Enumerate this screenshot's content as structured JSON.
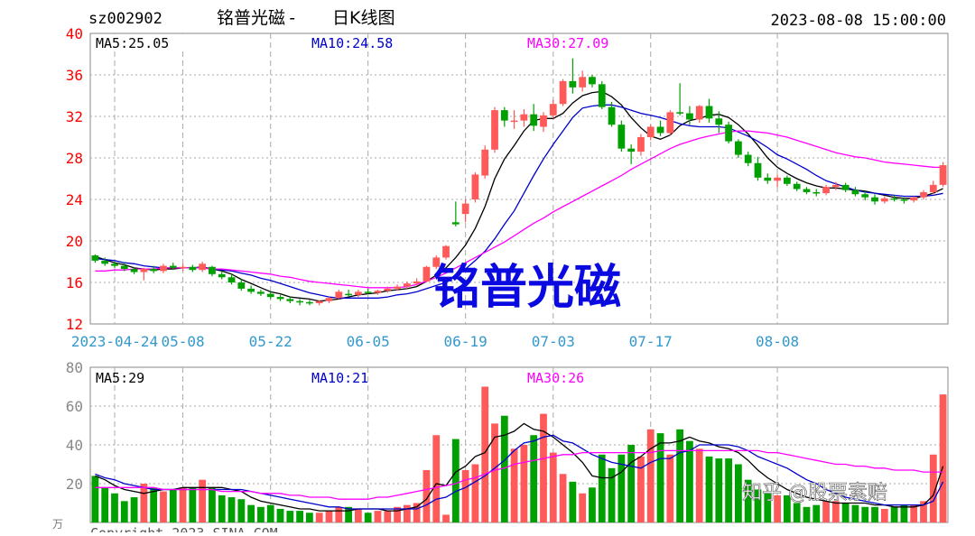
{
  "header": {
    "code": "sz002902",
    "name": "铭普光磁",
    "separator": "-",
    "chart_kind": "日K线图",
    "datetime": "2023-08-08 15:00:00"
  },
  "watermark": {
    "big": "铭普光磁",
    "source": "知乎 @股票素赔"
  },
  "footer": {
    "copyright": "Copyright 2023 SINA.COM",
    "unit": "万"
  },
  "colors": {
    "up": "#ff5a5a",
    "down": "#00a000",
    "ma5": "#000000",
    "ma10": "#0000cc",
    "ma30": "#ff00ff",
    "axis_price": "#ff0000",
    "axis_date": "#3399cc",
    "watermark": "#0a0ae0"
  },
  "chart_data": [
    {
      "type": "candlestick",
      "name": "price",
      "yticks": [
        12,
        16,
        20,
        24,
        28,
        32,
        36,
        40
      ],
      "ylim": [
        12,
        40
      ],
      "grid": true,
      "legend": [
        {
          "label": "MA5:25.05"
        },
        {
          "label": "MA10:24.58"
        },
        {
          "label": "MA30:27.09"
        }
      ],
      "xticks": [
        {
          "label": "2023-04-24",
          "index": 2
        },
        {
          "label": "05-08",
          "index": 9
        },
        {
          "label": "05-22",
          "index": 18
        },
        {
          "label": "06-05",
          "index": 28
        },
        {
          "label": "06-19",
          "index": 38
        },
        {
          "label": "07-03",
          "index": 47
        },
        {
          "label": "07-17",
          "index": 57
        },
        {
          "label": "08-08",
          "index": 70
        }
      ],
      "ohlc": [
        [
          18.6,
          18.7,
          17.9,
          18.1
        ],
        [
          18.1,
          18.4,
          17.6,
          17.8
        ],
        [
          17.8,
          18.0,
          17.4,
          17.6
        ],
        [
          17.6,
          17.9,
          17.1,
          17.3
        ],
        [
          17.3,
          17.5,
          16.8,
          17.0
        ],
        [
          17.0,
          17.4,
          16.2,
          17.3
        ],
        [
          17.3,
          17.6,
          16.9,
          17.1
        ],
        [
          17.1,
          17.8,
          16.9,
          17.6
        ],
        [
          17.6,
          17.9,
          17.2,
          17.4
        ],
        [
          17.4,
          17.8,
          17.1,
          17.5
        ],
        [
          17.5,
          17.7,
          17.0,
          17.2
        ],
        [
          17.2,
          18.0,
          17.0,
          17.8
        ],
        [
          17.5,
          17.6,
          16.6,
          16.8
        ],
        [
          16.8,
          17.1,
          16.3,
          16.5
        ],
        [
          16.5,
          16.8,
          15.8,
          16.0
        ],
        [
          16.0,
          16.3,
          15.2,
          15.4
        ],
        [
          15.4,
          15.7,
          14.9,
          15.1
        ],
        [
          15.1,
          15.3,
          14.7,
          14.9
        ],
        [
          14.9,
          15.1,
          14.4,
          14.6
        ],
        [
          14.6,
          14.8,
          14.2,
          14.4
        ],
        [
          14.4,
          14.6,
          14.0,
          14.2
        ],
        [
          14.2,
          14.4,
          13.8,
          14.1
        ],
        [
          14.1,
          14.3,
          13.8,
          14.0
        ],
        [
          14.0,
          14.3,
          13.8,
          14.2
        ],
        [
          14.2,
          14.6,
          14.0,
          14.5
        ],
        [
          14.5,
          15.3,
          14.4,
          15.1
        ],
        [
          14.9,
          15.3,
          14.6,
          14.8
        ],
        [
          14.8,
          15.3,
          14.6,
          15.1
        ],
        [
          15.1,
          15.4,
          14.9,
          15.0
        ],
        [
          15.0,
          15.3,
          14.8,
          15.2
        ],
        [
          15.2,
          15.6,
          15.0,
          15.4
        ],
        [
          15.4,
          15.8,
          15.2,
          15.6
        ],
        [
          15.6,
          16.1,
          15.4,
          15.9
        ],
        [
          15.9,
          16.4,
          15.7,
          16.1
        ],
        [
          16.1,
          17.6,
          16.0,
          17.5
        ],
        [
          17.5,
          18.6,
          17.3,
          18.4
        ],
        [
          18.4,
          19.6,
          18.2,
          19.5
        ],
        [
          21.8,
          23.8,
          21.4,
          21.6
        ],
        [
          22.6,
          24.0,
          21.8,
          23.6
        ],
        [
          24.0,
          26.6,
          23.7,
          26.4
        ],
        [
          26.3,
          29.2,
          26.0,
          28.8
        ],
        [
          28.8,
          32.9,
          28.5,
          32.6
        ],
        [
          32.6,
          32.9,
          31.0,
          31.6
        ],
        [
          31.5,
          32.6,
          30.8,
          31.6
        ],
        [
          31.6,
          32.7,
          31.0,
          32.2
        ],
        [
          32.2,
          33.2,
          30.6,
          31.1
        ],
        [
          31.0,
          32.4,
          30.5,
          32.1
        ],
        [
          32.1,
          33.6,
          31.8,
          33.2
        ],
        [
          33.2,
          35.6,
          33.0,
          35.4
        ],
        [
          35.4,
          37.6,
          34.2,
          34.8
        ],
        [
          34.8,
          36.4,
          34.4,
          35.8
        ],
        [
          35.8,
          36.0,
          34.8,
          35.1
        ],
        [
          35.1,
          35.4,
          32.7,
          32.9
        ],
        [
          32.9,
          33.4,
          31.0,
          31.2
        ],
        [
          31.2,
          31.6,
          28.6,
          28.9
        ],
        [
          28.9,
          29.3,
          27.4,
          28.6
        ],
        [
          28.6,
          30.3,
          28.2,
          30.0
        ],
        [
          30.0,
          31.2,
          29.7,
          31.0
        ],
        [
          31.0,
          31.6,
          30.1,
          30.4
        ],
        [
          30.4,
          32.6,
          30.2,
          32.4
        ],
        [
          32.4,
          35.2,
          32.1,
          32.3
        ],
        [
          32.3,
          33.0,
          31.2,
          31.7
        ],
        [
          31.7,
          33.1,
          31.4,
          33.0
        ],
        [
          33.0,
          33.7,
          31.4,
          31.8
        ],
        [
          31.8,
          32.5,
          30.4,
          31.2
        ],
        [
          31.2,
          31.5,
          29.4,
          29.6
        ],
        [
          29.6,
          29.8,
          28.0,
          28.3
        ],
        [
          28.3,
          28.6,
          27.2,
          27.5
        ],
        [
          27.5,
          28.1,
          25.8,
          26.1
        ],
        [
          26.1,
          26.5,
          25.5,
          25.8
        ],
        [
          25.8,
          26.4,
          25.2,
          26.1
        ],
        [
          26.1,
          26.3,
          25.3,
          25.5
        ],
        [
          25.5,
          25.7,
          24.8,
          25.0
        ],
        [
          25.0,
          25.2,
          24.5,
          24.7
        ],
        [
          24.7,
          25.0,
          24.3,
          24.6
        ],
        [
          24.6,
          25.4,
          24.4,
          25.2
        ],
        [
          25.2,
          25.7,
          24.9,
          25.4
        ],
        [
          25.4,
          25.6,
          24.7,
          24.9
        ],
        [
          24.9,
          25.2,
          24.3,
          24.5
        ],
        [
          24.5,
          24.8,
          23.9,
          24.2
        ],
        [
          24.2,
          24.5,
          23.5,
          23.8
        ],
        [
          23.8,
          24.3,
          23.6,
          24.1
        ],
        [
          24.1,
          24.4,
          23.8,
          24.0
        ],
        [
          24.0,
          24.2,
          23.6,
          23.9
        ],
        [
          23.9,
          24.3,
          23.7,
          24.2
        ],
        [
          24.2,
          24.9,
          24.0,
          24.7
        ],
        [
          24.7,
          25.8,
          24.5,
          25.4
        ],
        [
          25.4,
          27.6,
          25.2,
          27.3
        ]
      ],
      "series": [
        {
          "name": "MA5",
          "values": [
            18.5,
            18.2,
            17.9,
            17.7,
            17.4,
            17.3,
            17.2,
            17.3,
            17.3,
            17.4,
            17.4,
            17.5,
            17.3,
            17.1,
            16.8,
            16.3,
            15.9,
            15.5,
            15.1,
            14.9,
            14.6,
            14.5,
            14.4,
            14.2,
            14.3,
            14.4,
            14.6,
            14.8,
            14.9,
            15.0,
            15.2,
            15.3,
            15.4,
            15.6,
            16.1,
            16.7,
            17.4,
            18.4,
            19.6,
            21.2,
            23.3,
            26.0,
            27.9,
            29.2,
            30.6,
            31.6,
            31.8,
            31.8,
            32.3,
            33.3,
            34.0,
            34.3,
            34.4,
            33.9,
            33.1,
            31.9,
            30.9,
            30.1,
            29.8,
            30.2,
            31.1,
            31.6,
            31.8,
            32.1,
            32.2,
            31.9,
            31.2,
            30.3,
            29.2,
            28.0,
            27.1,
            26.5,
            26.0,
            25.6,
            25.3,
            25.1,
            25.1,
            25.0,
            24.9,
            24.8,
            24.6,
            24.4,
            24.2,
            24.1,
            24.1,
            24.3,
            24.6,
            25.05
          ]
        },
        {
          "name": "MA10",
          "values": [
            18.3,
            18.2,
            18.1,
            17.9,
            17.8,
            17.6,
            17.5,
            17.4,
            17.4,
            17.4,
            17.4,
            17.4,
            17.3,
            17.2,
            17.1,
            16.9,
            16.7,
            16.4,
            16.2,
            15.9,
            15.6,
            15.3,
            15.0,
            14.8,
            14.6,
            14.5,
            14.5,
            14.5,
            14.5,
            14.5,
            14.6,
            14.8,
            14.9,
            15.1,
            15.4,
            15.7,
            16.0,
            16.6,
            17.3,
            18.1,
            19.0,
            20.2,
            21.6,
            22.9,
            24.6,
            26.3,
            27.9,
            29.3,
            30.6,
            31.9,
            32.8,
            33.0,
            33.1,
            33.1,
            32.9,
            32.6,
            32.3,
            32.1,
            31.9,
            31.6,
            31.3,
            31.1,
            31.0,
            31.0,
            31.0,
            30.9,
            30.5,
            30.1,
            29.6,
            29.0,
            28.3,
            27.9,
            27.4,
            26.9,
            26.3,
            25.8,
            25.5,
            25.2,
            24.9,
            24.7,
            24.6,
            24.5,
            24.4,
            24.3,
            24.3,
            24.3,
            24.4,
            24.58
          ]
        },
        {
          "name": "MA30",
          "values": [
            17.1,
            17.1,
            17.2,
            17.2,
            17.3,
            17.3,
            17.3,
            17.4,
            17.4,
            17.4,
            17.4,
            17.4,
            17.3,
            17.3,
            17.2,
            17.1,
            17.0,
            16.9,
            16.8,
            16.6,
            16.5,
            16.3,
            16.1,
            16.0,
            15.9,
            15.8,
            15.7,
            15.6,
            15.5,
            15.5,
            15.5,
            15.5,
            15.6,
            15.8,
            16.1,
            16.5,
            16.9,
            17.4,
            17.9,
            18.4,
            18.9,
            19.4,
            19.9,
            20.5,
            21.1,
            21.7,
            22.2,
            22.8,
            23.3,
            23.8,
            24.3,
            24.8,
            25.3,
            25.8,
            26.3,
            26.9,
            27.4,
            27.9,
            28.4,
            28.9,
            29.3,
            29.6,
            29.9,
            30.1,
            30.3,
            30.5,
            30.6,
            30.6,
            30.5,
            30.4,
            30.2,
            30.0,
            29.7,
            29.4,
            29.1,
            28.8,
            28.5,
            28.3,
            28.1,
            28.0,
            27.8,
            27.6,
            27.5,
            27.4,
            27.3,
            27.2,
            27.1,
            27.09
          ]
        }
      ]
    },
    {
      "type": "bar",
      "name": "volume",
      "unit": "万",
      "yticks": [
        20,
        40,
        60,
        80
      ],
      "ylim": [
        0,
        80
      ],
      "grid": true,
      "legend": [
        {
          "label": "MA5:29"
        },
        {
          "label": "MA10:21"
        },
        {
          "label": "MA30:26"
        }
      ],
      "values": [
        24,
        18,
        15,
        11,
        13,
        20,
        18,
        16,
        17,
        18,
        18,
        22,
        18,
        14,
        13,
        12,
        9,
        8,
        9,
        7,
        6,
        6,
        5,
        5,
        6,
        8,
        8,
        7,
        5,
        6,
        6,
        8,
        9,
        10,
        27,
        45,
        4,
        43,
        27,
        30,
        70,
        51,
        55,
        38,
        40,
        45,
        56,
        36,
        25,
        21,
        15,
        18,
        35,
        28,
        35,
        40,
        34,
        48,
        46,
        35,
        48,
        42,
        38,
        34,
        33,
        33,
        30,
        22,
        17,
        15,
        14,
        14,
        10,
        8,
        9,
        11,
        11,
        10,
        9,
        8,
        8,
        7,
        8,
        9,
        9,
        11,
        35,
        66
      ],
      "series": [
        {
          "name": "MA5",
          "values": [
            24,
            22,
            19,
            17,
            16,
            15,
            16,
            17,
            17,
            18,
            18,
            18,
            18,
            18,
            17,
            16,
            13,
            11,
            10,
            9,
            8,
            7,
            7,
            6,
            6,
            6,
            6,
            7,
            7,
            7,
            6,
            6,
            7,
            8,
            12,
            20,
            19,
            26,
            29,
            34,
            36,
            44,
            45,
            47,
            51,
            48,
            47,
            44,
            40,
            36,
            31,
            24,
            23,
            23,
            26,
            31,
            34,
            38,
            41,
            41,
            42,
            44,
            42,
            41,
            39,
            38,
            36,
            32,
            27,
            23,
            20,
            17,
            15,
            13,
            12,
            11,
            10,
            10,
            10,
            10,
            9,
            9,
            8,
            8,
            8,
            9,
            14,
            29
          ]
        },
        {
          "name": "MA10",
          "values": [
            25,
            23,
            22,
            20,
            19,
            18,
            17,
            17,
            17,
            17,
            17,
            17,
            17,
            17,
            17,
            17,
            16,
            15,
            14,
            13,
            12,
            11,
            10,
            9,
            8,
            8,
            7,
            7,
            7,
            7,
            7,
            7,
            7,
            7,
            9,
            12,
            13,
            16,
            18,
            21,
            24,
            28,
            32,
            37,
            41,
            42,
            44,
            45,
            42,
            41,
            38,
            35,
            33,
            31,
            30,
            29,
            28,
            31,
            33,
            33,
            36,
            37,
            40,
            40,
            40,
            40,
            39,
            37,
            34,
            32,
            30,
            28,
            25,
            22,
            20,
            17,
            15,
            13,
            12,
            11,
            10,
            9,
            9,
            9,
            9,
            9,
            11,
            21
          ]
        },
        {
          "name": "MA30",
          "values": [
            18,
            18,
            18,
            18,
            18,
            18,
            18,
            17,
            17,
            17,
            17,
            17,
            17,
            16,
            16,
            16,
            16,
            15,
            15,
            15,
            14,
            14,
            13,
            13,
            13,
            12,
            12,
            12,
            12,
            13,
            13,
            14,
            15,
            16,
            17,
            18,
            19,
            20,
            22,
            23,
            25,
            27,
            28,
            30,
            31,
            32,
            33,
            34,
            35,
            35,
            36,
            36,
            36,
            36,
            36,
            36,
            36,
            36,
            37,
            37,
            37,
            37,
            37,
            37,
            37,
            37,
            37,
            37,
            37,
            36,
            36,
            35,
            34,
            33,
            32,
            31,
            30,
            30,
            29,
            29,
            28,
            28,
            27,
            27,
            27,
            26,
            26,
            26
          ]
        }
      ]
    }
  ]
}
